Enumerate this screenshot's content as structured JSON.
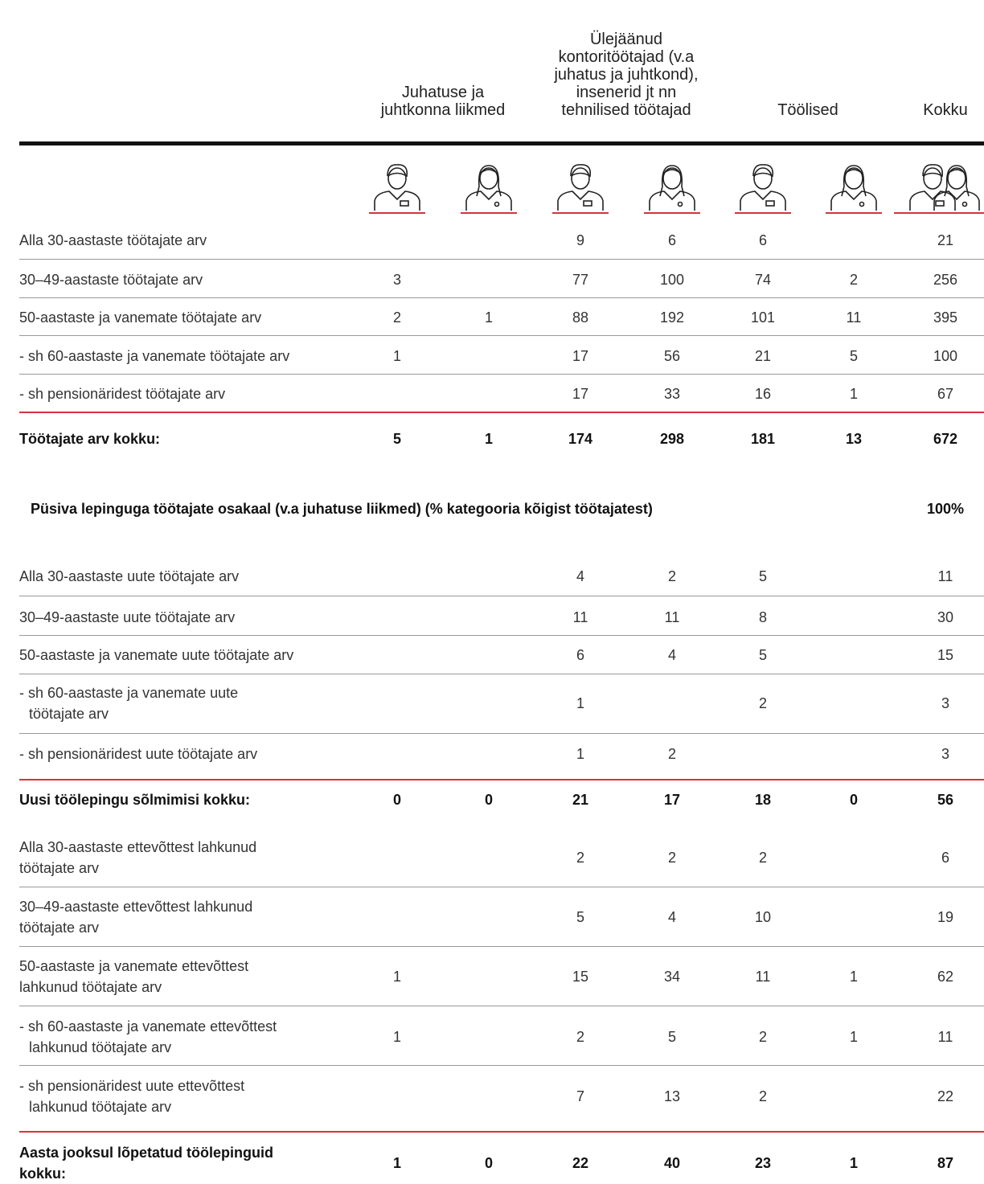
{
  "headers": [
    {
      "lines": [
        "Juhatuse ja",
        "juhtkonna liikmed"
      ]
    },
    {
      "lines": [
        "Ülejäänud",
        "kontoritöötajad (v.a",
        "juhatus ja juhtkond),",
        "insenerid jt nn",
        "tehnilised töötajad"
      ]
    },
    {
      "lines": [
        "Töölised"
      ]
    },
    {
      "lines": [
        "Kokku"
      ]
    }
  ],
  "sections": [
    {
      "rows": [
        {
          "label": [
            "Alla 30-aastaste töötajate arv"
          ],
          "values": [
            null,
            null,
            9,
            6,
            6,
            null,
            21
          ]
        },
        {
          "label": [
            "30–49-aastaste töötajate arv"
          ],
          "values": [
            3,
            null,
            77,
            100,
            74,
            2,
            256
          ]
        },
        {
          "label": [
            "50-aastaste ja vanemate töötajate arv"
          ],
          "values": [
            2,
            1,
            88,
            192,
            101,
            11,
            395
          ]
        },
        {
          "label": [
            "- sh 60-aastaste ja vanemate töötajate arv"
          ],
          "values": [
            1,
            null,
            17,
            56,
            21,
            5,
            100
          ]
        },
        {
          "label": [
            "- sh pensionäridest töötajate arv"
          ],
          "values": [
            null,
            null,
            17,
            33,
            16,
            1,
            67
          ]
        }
      ],
      "total": {
        "label": [
          "Töötajate arv kokku:"
        ],
        "values": [
          5,
          1,
          174,
          298,
          181,
          13,
          672
        ]
      }
    },
    {
      "rows": [
        {
          "label": [
            "Alla 30-aastaste uute töötajate arv"
          ],
          "values": [
            null,
            null,
            4,
            2,
            5,
            null,
            11
          ]
        },
        {
          "label": [
            "30–49-aastaste uute töötajate arv"
          ],
          "values": [
            null,
            null,
            11,
            11,
            8,
            null,
            30
          ]
        },
        {
          "label": [
            "50-aastaste ja vanemate uute töötajate arv"
          ],
          "values": [
            null,
            null,
            6,
            4,
            5,
            null,
            15
          ]
        },
        {
          "label": [
            "- sh 60-aastaste ja vanemate uute",
            "töötajate arv"
          ],
          "values": [
            null,
            null,
            1,
            null,
            2,
            null,
            3
          ]
        },
        {
          "label": [
            "- sh pensionäridest uute töötajate arv"
          ],
          "values": [
            null,
            null,
            1,
            2,
            null,
            null,
            3
          ]
        }
      ],
      "total": {
        "label": [
          "Uusi töölepingu sõlmimisi kokku:"
        ],
        "values": [
          0,
          0,
          21,
          17,
          18,
          0,
          56
        ]
      }
    },
    {
      "rows": [
        {
          "label": [
            "Alla 30-aastaste ettevõttest lahkunud",
            "töötajate arv"
          ],
          "values": [
            null,
            null,
            2,
            2,
            2,
            null,
            6
          ]
        },
        {
          "label": [
            "30–49-aastaste ettevõttest lahkunud",
            "töötajate arv"
          ],
          "values": [
            null,
            null,
            5,
            4,
            10,
            null,
            19
          ]
        },
        {
          "label": [
            "50-aastaste ja vanemate ettevõttest",
            "lahkunud töötajate arv"
          ],
          "values": [
            1,
            null,
            15,
            34,
            11,
            1,
            62
          ]
        },
        {
          "label": [
            "- sh 60-aastaste ja vanemate ettevõttest",
            "lahkunud töötajate arv"
          ],
          "values": [
            1,
            null,
            2,
            5,
            2,
            1,
            11
          ]
        },
        {
          "label": [
            "- sh pensionäridest uute ettevõttest",
            "lahkunud töötajate arv"
          ],
          "values": [
            null,
            null,
            7,
            13,
            2,
            null,
            22
          ]
        }
      ],
      "total": {
        "label": [
          "Aasta jooksul lõpetatud töölepinguid",
          "kokku:"
        ],
        "values": [
          1,
          0,
          22,
          40,
          23,
          1,
          87
        ]
      }
    }
  ],
  "note": {
    "label": "Püsiva lepinguga töötajate osakaal (v.a juhatuse liikmed) (% kategooria kõigist töötajatest)",
    "value": "100%"
  }
}
